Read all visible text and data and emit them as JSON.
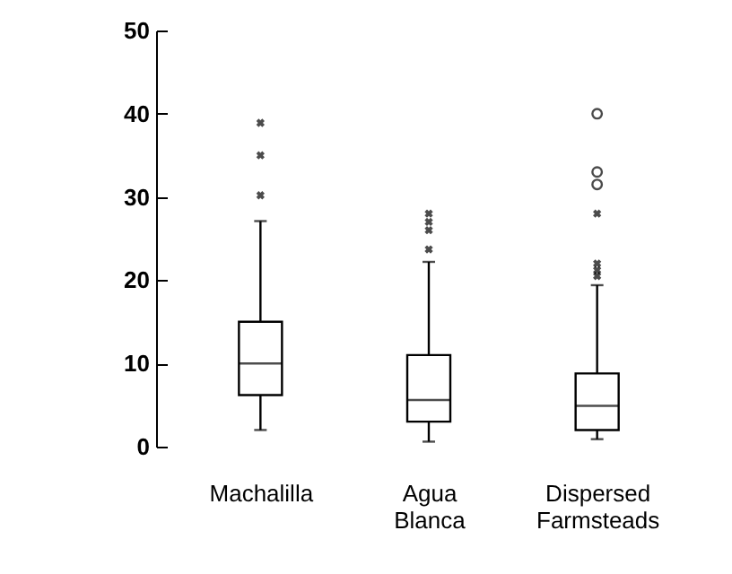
{
  "chart_data": {
    "type": "box",
    "categories": [
      "Machalilla",
      "Agua Blanca",
      "Dispersed Farmsteads"
    ],
    "ylim": [
      0,
      50
    ],
    "yticks": [
      0,
      10,
      20,
      30,
      40,
      50
    ],
    "grid": false,
    "series": [
      {
        "type": "box",
        "color": "#000000",
        "marker": "cross",
        "boxes": [
          {
            "low": 2,
            "q1": 6.2,
            "median": 10,
            "q3": 15,
            "high": 27.1,
            "outliers": [
              30.2,
              35,
              38.9
            ]
          },
          {
            "low": 0.6,
            "q1": 3,
            "median": 5.6,
            "q3": 11,
            "high": 22.2,
            "outliers": [
              23.7,
              26,
              27,
              28
            ]
          },
          {
            "low": 0.9,
            "q1": 2,
            "median": 4.9,
            "q3": 8.8,
            "high": 19.4,
            "outliers": [
              20.5,
              21.2,
              22,
              28
            ]
          }
        ]
      },
      {
        "type": "scatter",
        "color": "#000000",
        "marker": "circle",
        "x": [
          "Dispersed Farmsteads",
          "Dispersed Farmsteads",
          "Dispersed Farmsteads"
        ],
        "values": [
          31.5,
          33,
          40
        ]
      }
    ]
  }
}
